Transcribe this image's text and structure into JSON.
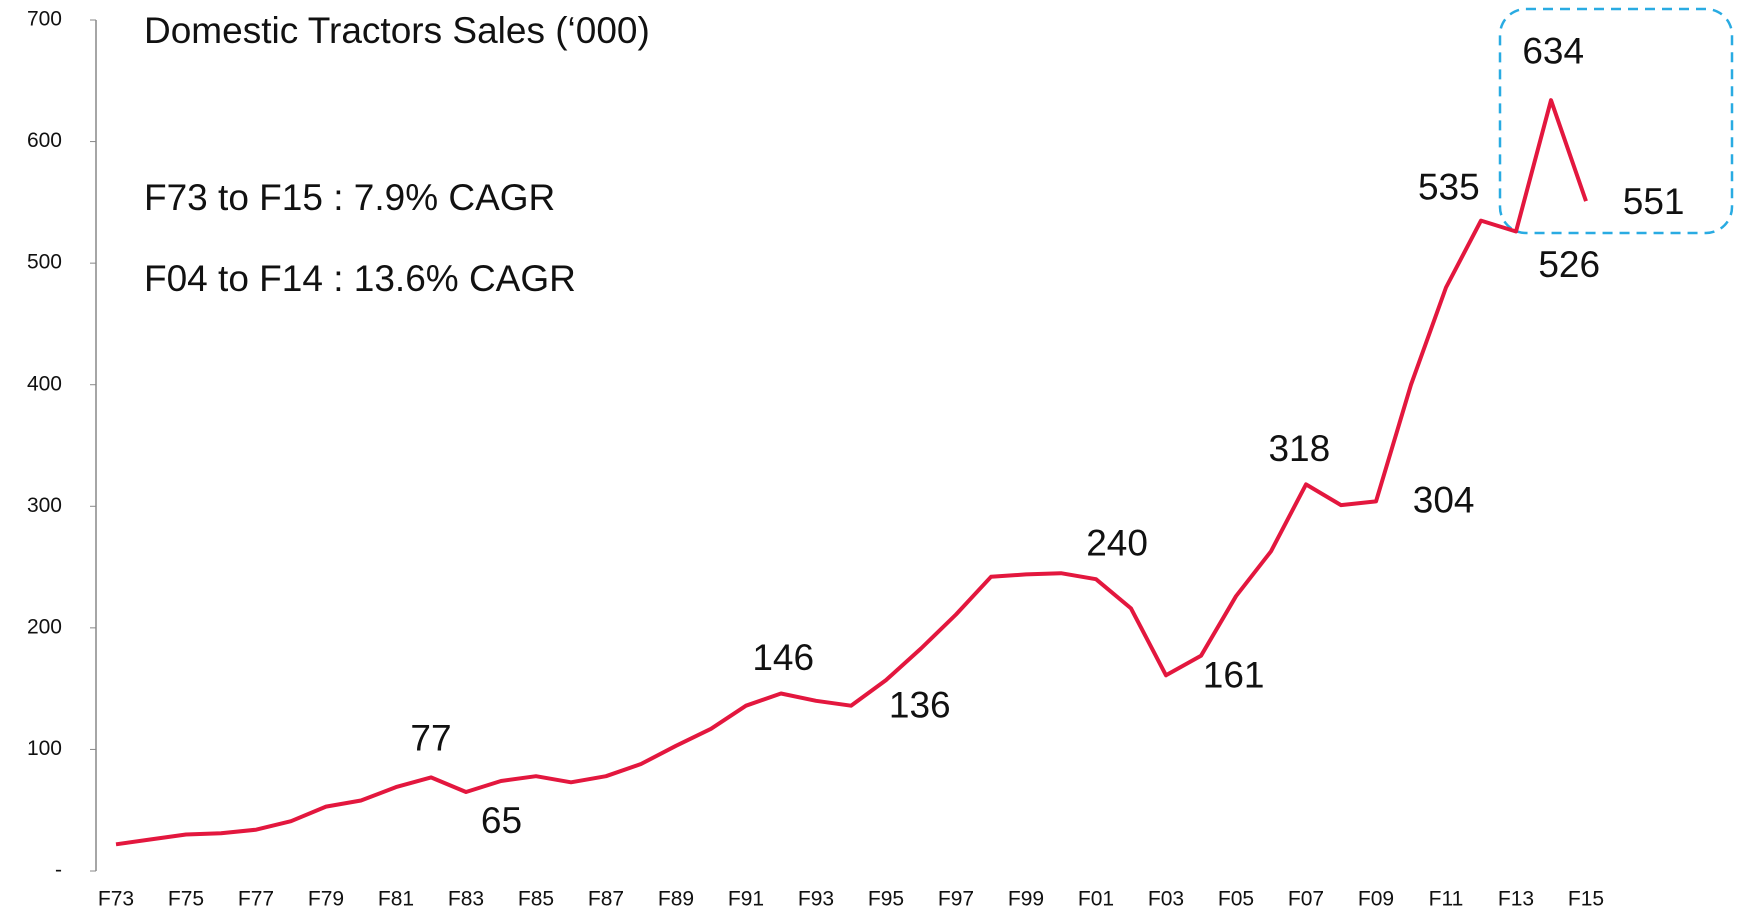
{
  "chart_data": {
    "type": "line",
    "title": "Domestic Tractors Sales (‘000)",
    "annotations": [
      "F73 to F15 : 7.9% CAGR",
      "F04 to F14 : 13.6% CAGR"
    ],
    "categories": [
      "F73",
      null,
      "F75",
      null,
      "F77",
      null,
      "F79",
      null,
      "F81",
      null,
      "F83",
      null,
      "F85",
      null,
      "F87",
      null,
      "F89",
      null,
      "F91",
      null,
      "F93",
      null,
      "F95",
      null,
      "F97",
      null,
      "F99",
      null,
      "F01",
      null,
      "F03",
      null,
      "F05",
      null,
      "F07",
      null,
      "F09",
      null,
      "F11",
      null,
      "F13",
      null,
      "F15"
    ],
    "series": [
      {
        "name": "Domestic Tractors Sales",
        "color": "#e3173e",
        "values": [
          22,
          26,
          30,
          31,
          34,
          41,
          53,
          58,
          69,
          77,
          65,
          74,
          78,
          73,
          78,
          88,
          103,
          117,
          136,
          146,
          140,
          136,
          157,
          183,
          211,
          242,
          244,
          245,
          240,
          216,
          161,
          177,
          226,
          263,
          318,
          301,
          304,
          400,
          480,
          535,
          526,
          634,
          551
        ],
        "value_labels": [
          null,
          null,
          null,
          null,
          null,
          null,
          null,
          null,
          null,
          "77",
          "65",
          null,
          null,
          null,
          null,
          null,
          null,
          null,
          null,
          "146",
          null,
          "136",
          null,
          null,
          null,
          null,
          null,
          null,
          "240",
          null,
          "161",
          null,
          null,
          null,
          "318",
          null,
          "304",
          null,
          null,
          "535",
          "526",
          "634",
          "551"
        ]
      }
    ],
    "ylim": [
      0,
      700
    ],
    "yticks": [
      {
        "value": 0,
        "label": "-"
      },
      100,
      200,
      300,
      400,
      500,
      600,
      700
    ]
  }
}
